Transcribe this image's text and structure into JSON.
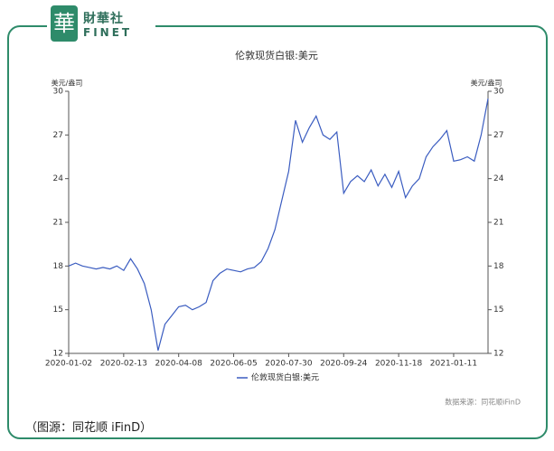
{
  "logo": {
    "mark": "華",
    "name": "財華社",
    "latin": "FINET"
  },
  "caption": "（图源：同花顺 iFinD）",
  "chart_data": {
    "type": "line",
    "title": "伦敦现货白银:美元",
    "y_unit": "美元/盎司",
    "y2_unit": "美元/盎司",
    "source": "数据来源：同花顺iFinD",
    "categories": [
      "2020-01-02",
      null,
      null,
      null,
      null,
      null,
      null,
      null,
      "2020-02-13",
      null,
      null,
      null,
      null,
      null,
      null,
      null,
      "2020-04-08",
      null,
      null,
      null,
      null,
      null,
      null,
      null,
      "2020-06-05",
      null,
      null,
      null,
      null,
      null,
      null,
      null,
      "2020-07-30",
      null,
      null,
      null,
      null,
      null,
      null,
      null,
      "2020-09-24",
      null,
      null,
      null,
      null,
      null,
      null,
      null,
      "2020-11-18",
      null,
      null,
      null,
      null,
      null,
      null,
      null,
      "2021-01-11",
      null,
      null,
      null,
      null,
      null
    ],
    "series": [
      {
        "name": "伦敦现货白银:美元",
        "color": "#3a5cc0",
        "values": [
          18.0,
          18.2,
          18.0,
          17.9,
          17.8,
          17.9,
          17.8,
          18.0,
          17.7,
          18.5,
          17.8,
          16.8,
          15.0,
          12.2,
          14.0,
          14.6,
          15.2,
          15.3,
          15.0,
          15.2,
          15.5,
          17.0,
          17.5,
          17.8,
          17.7,
          17.6,
          17.8,
          17.9,
          18.3,
          19.2,
          20.5,
          22.5,
          24.5,
          28.0,
          26.5,
          27.5,
          28.3,
          27.0,
          26.7,
          27.2,
          23.0,
          23.8,
          24.2,
          23.8,
          24.6,
          23.5,
          24.3,
          23.4,
          24.5,
          22.7,
          23.5,
          24.0,
          25.5,
          26.2,
          26.7,
          27.3,
          25.2,
          25.3,
          25.5,
          25.2,
          27.0,
          29.5
        ]
      }
    ],
    "ylim": [
      12,
      30
    ],
    "yticks": [
      12,
      15,
      18,
      21,
      24,
      27,
      30
    ],
    "y2lim": [
      12,
      30
    ],
    "y2ticks": [
      12,
      15,
      18,
      21,
      24,
      27,
      30
    ]
  }
}
